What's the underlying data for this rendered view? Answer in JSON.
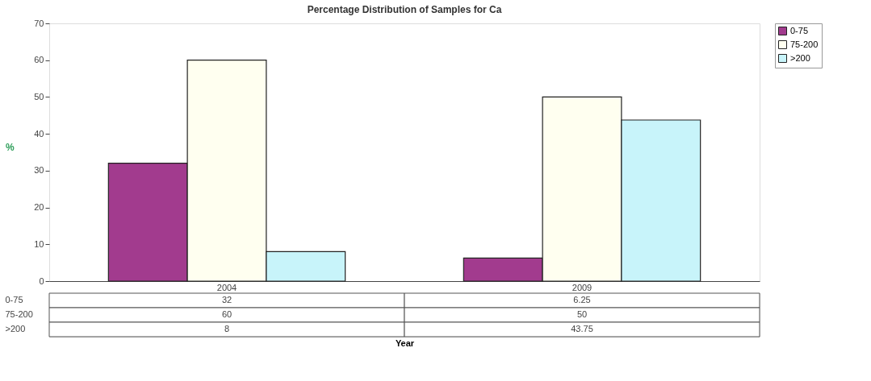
{
  "chart_data": {
    "type": "bar",
    "title": "Percentage Distribution of Samples for Ca",
    "annotations": [
      "Year"
    ],
    "ylabel": "%",
    "categories": [
      "2004",
      "2009"
    ],
    "series": [
      {
        "name": "0-75",
        "color": "#a23b8e",
        "values": [
          32,
          6.25
        ]
      },
      {
        "name": "75-200",
        "color": "#fffff0",
        "values": [
          60,
          50
        ]
      },
      {
        "name": ">200",
        "color": "#c8f4fa",
        "values": [
          8,
          43.75
        ]
      }
    ],
    "ylim": [
      0,
      70
    ],
    "yticks": [
      0,
      10,
      20,
      30,
      40,
      50,
      60,
      70
    ],
    "grid": false,
    "legend": "right",
    "data_labels": true
  }
}
